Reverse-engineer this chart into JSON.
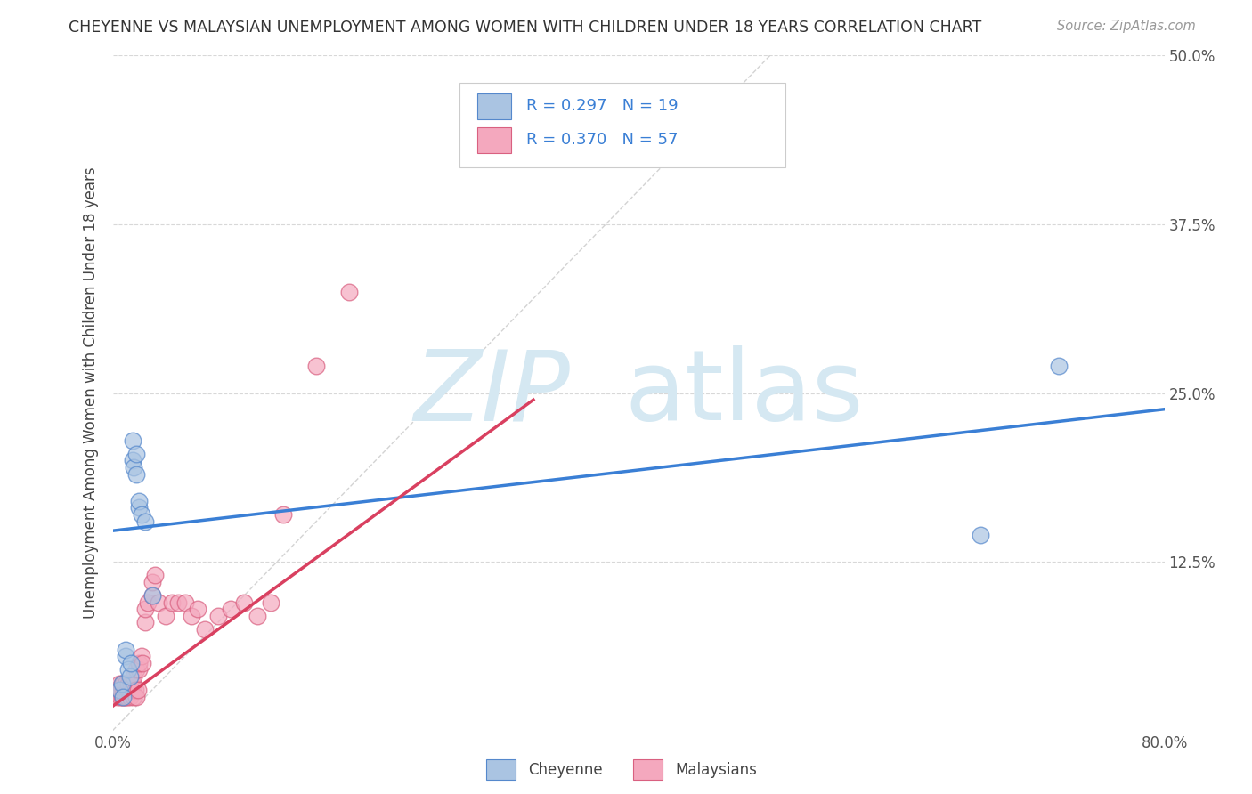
{
  "title": "CHEYENNE VS MALAYSIAN UNEMPLOYMENT AMONG WOMEN WITH CHILDREN UNDER 18 YEARS CORRELATION CHART",
  "source": "Source: ZipAtlas.com",
  "ylabel": "Unemployment Among Women with Children Under 18 years",
  "xlim": [
    0.0,
    0.8
  ],
  "ylim": [
    0.0,
    0.5
  ],
  "xticks": [
    0.0,
    0.2,
    0.4,
    0.6,
    0.8
  ],
  "yticks": [
    0.0,
    0.125,
    0.25,
    0.375,
    0.5
  ],
  "cheyenne_color": "#aac4e2",
  "malaysian_color": "#f4a8be",
  "cheyenne_edge": "#5588cc",
  "malaysian_edge": "#d96080",
  "trendline_cheyenne": "#3a7fd5",
  "trendline_malaysian": "#d94060",
  "diagonal_color": "#c8c8c8",
  "background_color": "#ffffff",
  "grid_color": "#d8d8d8",
  "cheyenne_points_x": [
    0.005,
    0.007,
    0.008,
    0.01,
    0.01,
    0.012,
    0.013,
    0.014,
    0.015,
    0.015,
    0.016,
    0.018,
    0.018,
    0.02,
    0.02,
    0.022,
    0.025,
    0.03,
    0.66,
    0.72
  ],
  "cheyenne_points_y": [
    0.03,
    0.035,
    0.025,
    0.055,
    0.06,
    0.045,
    0.04,
    0.05,
    0.2,
    0.215,
    0.195,
    0.19,
    0.205,
    0.165,
    0.17,
    0.16,
    0.155,
    0.1,
    0.145,
    0.27
  ],
  "malaysian_points_x": [
    0.003,
    0.004,
    0.005,
    0.005,
    0.006,
    0.006,
    0.007,
    0.007,
    0.008,
    0.008,
    0.008,
    0.009,
    0.009,
    0.01,
    0.01,
    0.01,
    0.011,
    0.011,
    0.012,
    0.012,
    0.013,
    0.013,
    0.014,
    0.015,
    0.015,
    0.016,
    0.016,
    0.017,
    0.018,
    0.018,
    0.019,
    0.02,
    0.02,
    0.022,
    0.023,
    0.025,
    0.025,
    0.027,
    0.03,
    0.03,
    0.032,
    0.035,
    0.04,
    0.045,
    0.05,
    0.055,
    0.06,
    0.065,
    0.07,
    0.08,
    0.09,
    0.1,
    0.11,
    0.12,
    0.13,
    0.155,
    0.18
  ],
  "malaysian_points_y": [
    0.03,
    0.025,
    0.03,
    0.035,
    0.025,
    0.03,
    0.025,
    0.035,
    0.025,
    0.03,
    0.035,
    0.025,
    0.03,
    0.025,
    0.03,
    0.035,
    0.025,
    0.03,
    0.03,
    0.035,
    0.025,
    0.03,
    0.035,
    0.03,
    0.035,
    0.025,
    0.04,
    0.03,
    0.025,
    0.045,
    0.03,
    0.045,
    0.05,
    0.055,
    0.05,
    0.08,
    0.09,
    0.095,
    0.1,
    0.11,
    0.115,
    0.095,
    0.085,
    0.095,
    0.095,
    0.095,
    0.085,
    0.09,
    0.075,
    0.085,
    0.09,
    0.095,
    0.085,
    0.095,
    0.16,
    0.27,
    0.325
  ],
  "cheyenne_trend_x": [
    0.0,
    0.8
  ],
  "cheyenne_trend_y": [
    0.148,
    0.238
  ],
  "malaysian_trend_x": [
    0.0,
    0.32
  ],
  "malaysian_trend_y": [
    0.018,
    0.245
  ]
}
